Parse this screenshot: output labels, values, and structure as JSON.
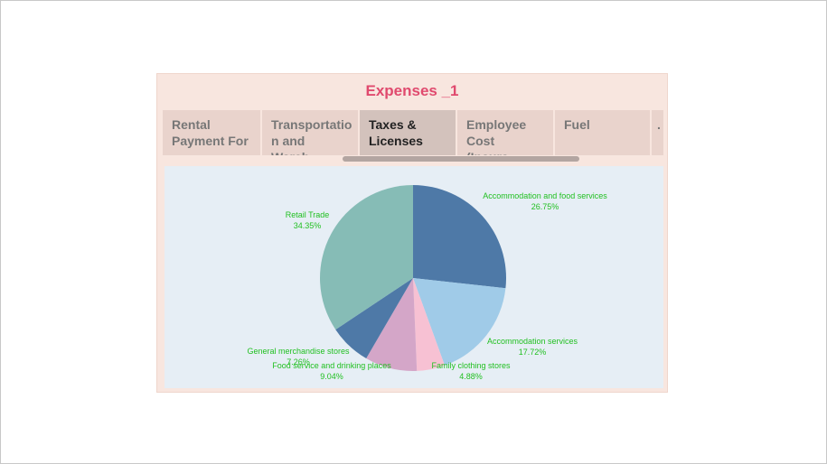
{
  "title": "Expenses _1",
  "tabs": [
    {
      "label_line1": "Rental",
      "label_line2": "Payment For ..",
      "active": false
    },
    {
      "label_line1": "Transportatio",
      "label_line2": "n and Wareh..",
      "active": false
    },
    {
      "label_line1": "Taxes &",
      "label_line2": "Licenses",
      "active": true
    },
    {
      "label_line1": "Employee",
      "label_line2": "Cost (Insura..",
      "active": false
    },
    {
      "label_line1": "Fuel",
      "label_line2": "",
      "active": false
    },
    {
      "label_line1": ".",
      "label_line2": "",
      "active": false
    }
  ],
  "colors": {
    "title": "#e04a6e",
    "label": "#22c022",
    "card_bg": "#f8e6df",
    "plot_bg": "#e6eef5"
  },
  "chart_data": {
    "type": "pie",
    "title": "",
    "legend": "none",
    "slices": [
      {
        "name": "Accommodation and food services",
        "value": 26.75,
        "pct_label": "26.75%",
        "color": "#4e79a7"
      },
      {
        "name": "Accommodation services",
        "value": 17.72,
        "pct_label": "17.72%",
        "color": "#a0cbe8"
      },
      {
        "name": "Family clothing stores",
        "value": 4.88,
        "pct_label": "4.88%",
        "color": "#f7c1d3"
      },
      {
        "name": "Food service and drinking places",
        "value": 9.04,
        "pct_label": "9.04%",
        "color": "#d4a6c8"
      },
      {
        "name": "General merchandise stores",
        "value": 7.26,
        "pct_label": "7.26%",
        "color": "#4e79a7"
      },
      {
        "name": "Retail Trade",
        "value": 34.35,
        "pct_label": "34.35%",
        "color": "#86bcb6"
      }
    ]
  }
}
